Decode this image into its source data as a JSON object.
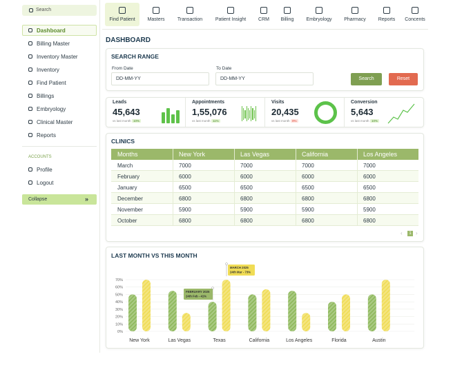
{
  "sidebar": {
    "search": "Search",
    "menu": [
      "Dashboard",
      "Billing Master",
      "Inventory Master",
      "Inventory",
      "Find Patient",
      "Billings",
      "Embryology",
      "Clinical Master",
      "Reports"
    ],
    "accounts_title": "ACCOUNTS",
    "accounts": [
      "Profile",
      "Logout"
    ],
    "collapse": "Collapse"
  },
  "nav": [
    "Find Patient",
    "Masters",
    "Transaction",
    "Patient Insight",
    "CRM",
    "Billing",
    "Embryology",
    "Pharmacy",
    "Reports",
    "Concents"
  ],
  "page_title": "DASHBOARD",
  "search_range": {
    "title": "SEARCH RANGE",
    "from_label": "From Date",
    "from_placeholder": "DD-MM-YY",
    "to_label": "To Date",
    "to_placeholder": "DD-MM-YY",
    "search": "Search",
    "reset": "Reset"
  },
  "stats": [
    {
      "label": "Leads",
      "value": "45,643",
      "note": "vs last month",
      "change": "10%"
    },
    {
      "label": "Appointments",
      "value": "1,55,076",
      "note": "vs last month",
      "change": "11%"
    },
    {
      "label": "Visits",
      "value": "20,435",
      "note": "vs last month",
      "change": "0%"
    },
    {
      "label": "Conversion",
      "value": "5,643",
      "note": "vs last month",
      "change": "10%"
    }
  ],
  "clinics": {
    "title": "CLINICS",
    "header": [
      "Months",
      "New York",
      "Las Vegas",
      "California",
      "Los Angeles"
    ],
    "rows": [
      [
        "March",
        "7000",
        "7000",
        "7000",
        "7000"
      ],
      [
        "February",
        "6000",
        "6000",
        "6000",
        "6000"
      ],
      [
        "January",
        "6500",
        "6500",
        "6500",
        "6500"
      ],
      [
        "December",
        "6800",
        "6800",
        "6800",
        "6800"
      ],
      [
        "November",
        "5900",
        "5900",
        "5900",
        "5900"
      ],
      [
        "October",
        "6800",
        "6800",
        "6800",
        "6800"
      ]
    ],
    "page": "1"
  },
  "chart_data": {
    "type": "bar",
    "title": "LAST MONTH VS THIS MONTH",
    "categories": [
      "New York",
      "Las Vegas",
      "Texas",
      "California",
      "Los Angeles",
      "Florida",
      "Austin"
    ],
    "series": [
      {
        "color": "#8db85a",
        "values": [
          50,
          55,
          40,
          50,
          55,
          40,
          50
        ]
      },
      {
        "color": "#f0dc55",
        "values": [
          70,
          25,
          70,
          57,
          25,
          50,
          70
        ]
      }
    ],
    "ylim": [
      0,
      70
    ],
    "yticks": [
      {
        "value": 0,
        "label": "0%"
      },
      {
        "value": 10,
        "label": "10%"
      },
      {
        "value": 20,
        "label": "20%"
      },
      {
        "value": 30,
        "label": "30%"
      },
      {
        "value": 40,
        "label": "40%"
      },
      {
        "value": 50,
        "label": "50%"
      },
      {
        "value": 60,
        "label": "60%"
      },
      {
        "value": 70,
        "label": "70%"
      }
    ],
    "grid": true,
    "annotations": [
      {
        "title": "FEBRUARY 2025",
        "text": "24th Feb - 41%"
      },
      {
        "title": "MARCH 2025",
        "text": "24th Mar - 73%"
      }
    ]
  }
}
